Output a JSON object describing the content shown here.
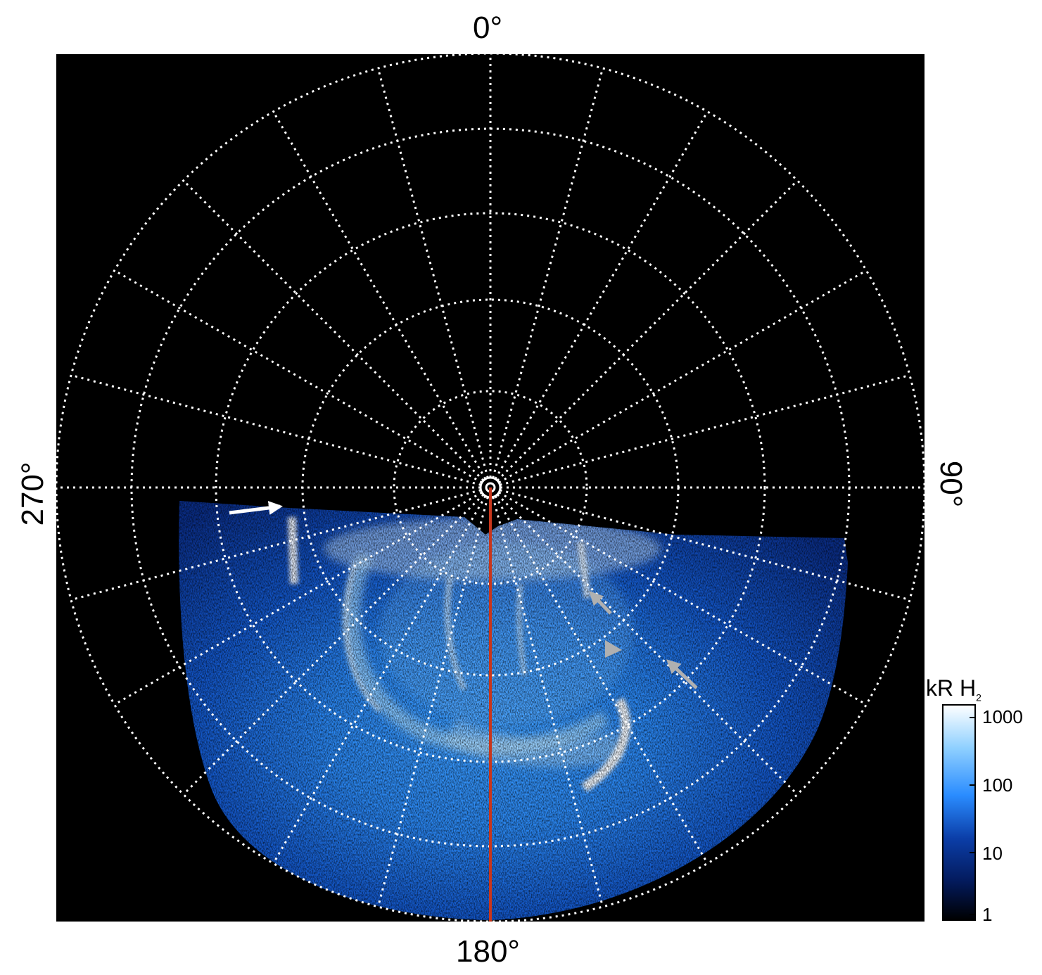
{
  "labels": {
    "top": "0°",
    "bottom": "180°",
    "left": "270°",
    "right": "90°"
  },
  "colorbar": {
    "title": "kR H",
    "title_sub": "2",
    "ticks": [
      "1000",
      "100",
      "10",
      "1"
    ],
    "colors": [
      "#ffffff",
      "#8fd0ff",
      "#2a8cff",
      "#0b3ea8",
      "#031a5c",
      "#000000"
    ]
  },
  "colors": {
    "background": "#000000",
    "grid": "#ffffff",
    "meridian": "#c8361c",
    "arrow_white": "#ffffff",
    "arrow_gray": "#b0b0b0"
  },
  "icons": [
    "white-arrow-icon",
    "gray-arrow-icon"
  ]
}
